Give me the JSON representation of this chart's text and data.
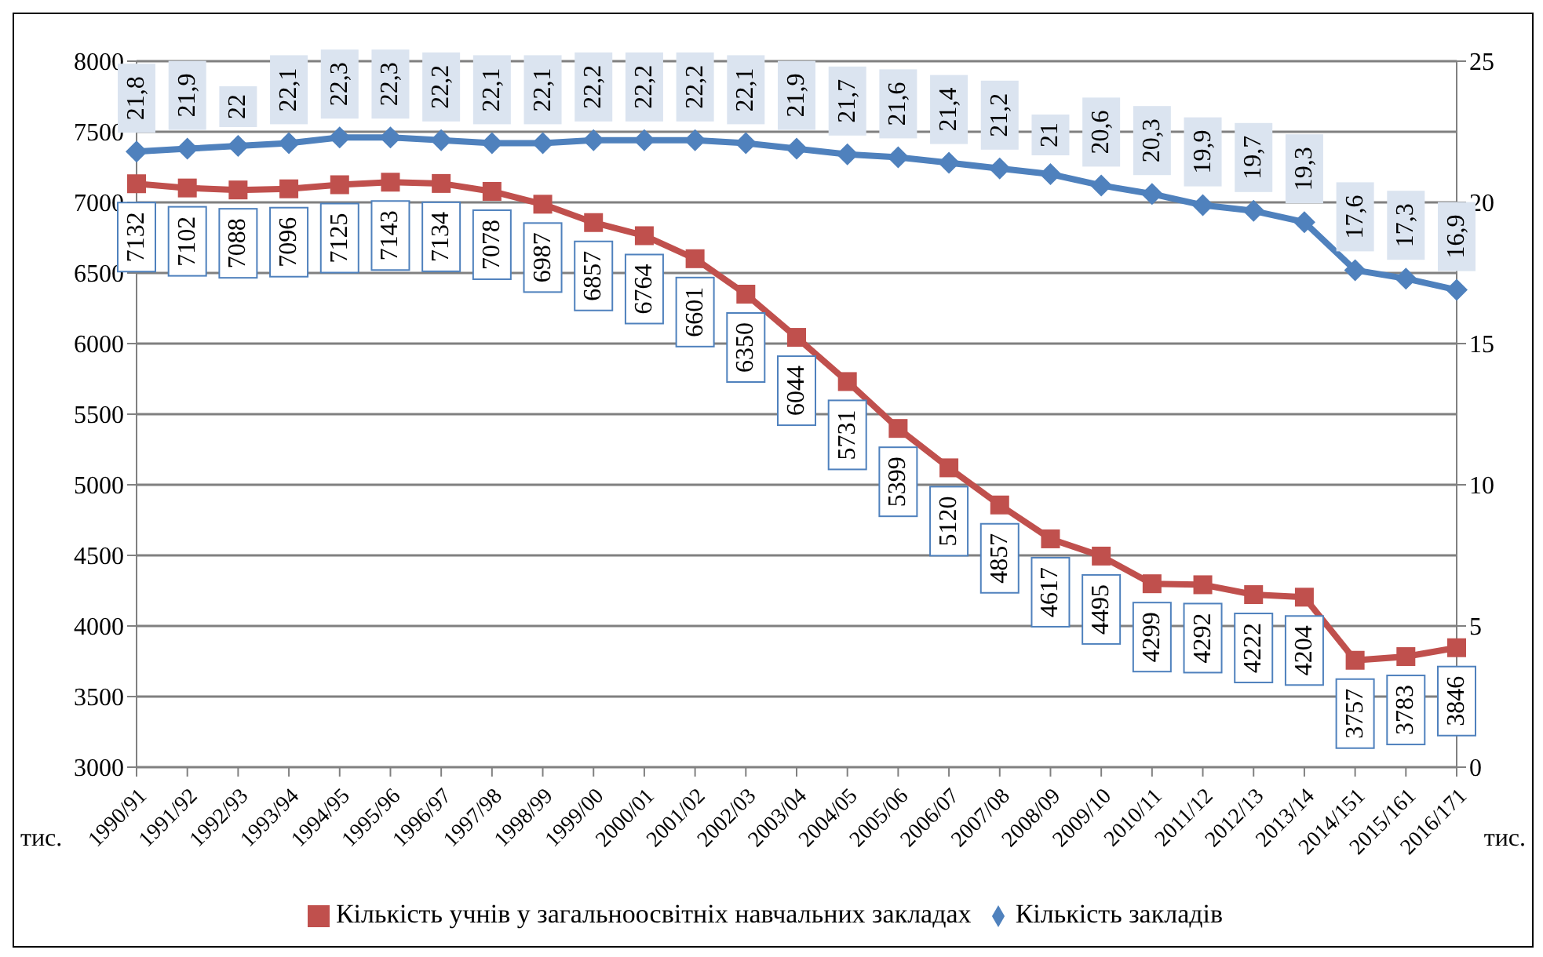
{
  "chart_data": {
    "type": "line",
    "ylabel": "тис.",
    "y2label": "тис.",
    "categories": [
      "1990/91",
      "1991/92",
      "1992/93",
      "1993/94",
      "1994/95",
      "1995/96",
      "1996/97",
      "1997/98",
      "1998/99",
      "1999/00",
      "2000/01",
      "2001/02",
      "2002/03",
      "2003/04",
      "2004/05",
      "2005/06",
      "2006/07",
      "2007/08",
      "2008/09",
      "2009/10",
      "2010/11",
      "2011/12",
      "2012/13",
      "2013/14",
      "2014/151",
      "2015/161",
      "2016/171"
    ],
    "series": [
      {
        "name": "Кількість учнів у загальноосвітніх навчальних закладах",
        "color": "#c0504d",
        "marker": "square",
        "values": [
          7132,
          7102,
          7088,
          7096,
          7125,
          7143,
          7134,
          7078,
          6987,
          6857,
          6764,
          6601,
          6350,
          6044,
          5731,
          5399,
          5120,
          4857,
          4617,
          4495,
          4299,
          4292,
          4222,
          4204,
          3757,
          3783,
          3846
        ],
        "value_labels": [
          "7132",
          "7102",
          "7088",
          "7096",
          "7125",
          "7143",
          "7134",
          "7078",
          "6987",
          "6857",
          "6764",
          "6601",
          "6350",
          "6044",
          "5731",
          "5399",
          "5120",
          "4857",
          "4617",
          "4495",
          "4299",
          "4292",
          "4222",
          "4204",
          "3757",
          "3783",
          "3846"
        ]
      },
      {
        "name": "Кількість закладів",
        "color": "#4f81bd",
        "marker": "diamond",
        "axis": "y2",
        "values": [
          21.8,
          21.9,
          22,
          22.1,
          22.3,
          22.3,
          22.2,
          22.1,
          22.1,
          22.2,
          22.2,
          22.2,
          22.1,
          21.9,
          21.7,
          21.6,
          21.4,
          21.2,
          21,
          20.6,
          20.3,
          19.9,
          19.7,
          19.3,
          17.6,
          17.3,
          16.9
        ],
        "value_labels": [
          "21,8",
          "21,9",
          "22",
          "22,1",
          "22,3",
          "22,3",
          "22,2",
          "22,1",
          "22,1",
          "22,2",
          "22,2",
          "22,2",
          "22,1",
          "21,9",
          "21,7",
          "21,6",
          "21,4",
          "21,2",
          "21",
          "20,6",
          "20,3",
          "19,9",
          "19,7",
          "19,3",
          "17,6",
          "17,3",
          "16,9"
        ]
      }
    ],
    "ylim": [
      3000,
      8000
    ],
    "yticks": [
      3000,
      3500,
      4000,
      4500,
      5000,
      5500,
      6000,
      6500,
      7000,
      7500,
      8000
    ],
    "y2lim": [
      0,
      25
    ],
    "y2ticks": [
      0,
      5,
      10,
      15,
      20,
      25
    ],
    "grid": "y",
    "legend": "bottom"
  }
}
